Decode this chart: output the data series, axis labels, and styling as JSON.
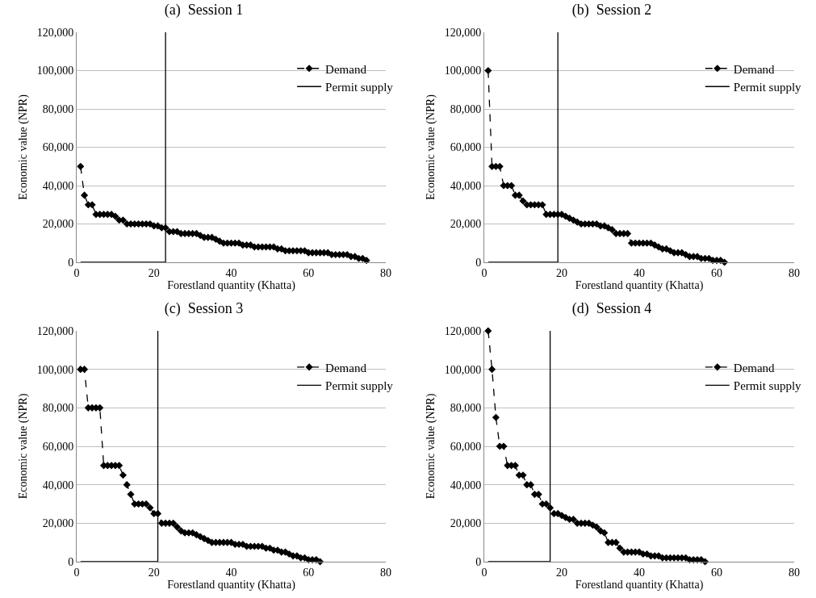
{
  "chart_data": [
    {
      "type": "line",
      "title": "(a)  Session 1",
      "xlabel": "Forestland quantity (Khatta)",
      "ylabel": "Economic value (NPR)",
      "xlim": [
        0,
        80
      ],
      "xticks": [
        0,
        20,
        40,
        60,
        80
      ],
      "ylim": [
        0,
        120000
      ],
      "yticks": [
        {
          "value": 0,
          "label": "0"
        },
        {
          "value": 20000,
          "label": "20,000"
        },
        {
          "value": 40000,
          "label": "40,000"
        },
        {
          "value": 60000,
          "label": "60,000"
        },
        {
          "value": 80000,
          "label": "80,000"
        },
        {
          "value": 100000,
          "label": "100,000"
        },
        {
          "value": 120000,
          "label": "120,000"
        }
      ],
      "grid": "y",
      "legend": "top right",
      "series": [
        {
          "name": "Demand",
          "color": "#000000",
          "marker": "diamond",
          "line_style": "dashed",
          "x": [
            1,
            2,
            3,
            4,
            5,
            6,
            7,
            8,
            9,
            10,
            11,
            12,
            13,
            14,
            15,
            16,
            17,
            18,
            19,
            20,
            21,
            22,
            23,
            24,
            25,
            26,
            27,
            28,
            29,
            30,
            31,
            32,
            33,
            34,
            35,
            36,
            37,
            38,
            39,
            40,
            41,
            42,
            43,
            44,
            45,
            46,
            47,
            48,
            49,
            50,
            51,
            52,
            53,
            54,
            55,
            56,
            57,
            58,
            59,
            60,
            61,
            62,
            63,
            64,
            65,
            66,
            67,
            68,
            69,
            70,
            71,
            72,
            73,
            74,
            75
          ],
          "values": [
            50000,
            35000,
            30000,
            30000,
            25000,
            25000,
            25000,
            25000,
            25000,
            24000,
            22000,
            22000,
            20000,
            20000,
            20000,
            20000,
            20000,
            20000,
            20000,
            19000,
            19000,
            18000,
            18000,
            16000,
            16000,
            16000,
            15000,
            15000,
            15000,
            15000,
            15000,
            14000,
            13000,
            13000,
            13000,
            12000,
            11000,
            10000,
            10000,
            10000,
            10000,
            10000,
            9000,
            9000,
            9000,
            8000,
            8000,
            8000,
            8000,
            8000,
            8000,
            7000,
            7000,
            6000,
            6000,
            6000,
            6000,
            6000,
            6000,
            5000,
            5000,
            5000,
            5000,
            5000,
            5000,
            4000,
            4000,
            4000,
            4000,
            4000,
            3000,
            3000,
            2000,
            2000,
            1000
          ]
        },
        {
          "name": "Permit supply",
          "color": "#000000",
          "marker": "none",
          "line_style": "solid",
          "x": [
            1,
            23,
            23
          ],
          "values": [
            0,
            0,
            120000
          ]
        }
      ]
    },
    {
      "type": "line",
      "title": "(b)  Session 2",
      "xlabel": "Forestland quantity (Khatta)",
      "ylabel": "Economic value (NPR)",
      "xlim": [
        0,
        80
      ],
      "xticks": [
        0,
        20,
        40,
        60,
        80
      ],
      "ylim": [
        0,
        120000
      ],
      "yticks": [
        {
          "value": 0,
          "label": "0"
        },
        {
          "value": 20000,
          "label": "20,000"
        },
        {
          "value": 40000,
          "label": "40,000"
        },
        {
          "value": 60000,
          "label": "60,000"
        },
        {
          "value": 80000,
          "label": "80,000"
        },
        {
          "value": 100000,
          "label": "100,000"
        },
        {
          "value": 120000,
          "label": "120,000"
        }
      ],
      "grid": "y",
      "legend": "top right",
      "series": [
        {
          "name": "Demand",
          "color": "#000000",
          "marker": "diamond",
          "line_style": "dashed",
          "x": [
            1,
            2,
            3,
            4,
            5,
            6,
            7,
            8,
            9,
            10,
            11,
            12,
            13,
            14,
            15,
            16,
            17,
            18,
            19,
            20,
            21,
            22,
            23,
            24,
            25,
            26,
            27,
            28,
            29,
            30,
            31,
            32,
            33,
            34,
            35,
            36,
            37,
            38,
            39,
            40,
            41,
            42,
            43,
            44,
            45,
            46,
            47,
            48,
            49,
            50,
            51,
            52,
            53,
            54,
            55,
            56,
            57,
            58,
            59,
            60,
            61,
            62
          ],
          "values": [
            100000,
            50000,
            50000,
            50000,
            40000,
            40000,
            40000,
            35000,
            35000,
            32000,
            30000,
            30000,
            30000,
            30000,
            30000,
            25000,
            25000,
            25000,
            25000,
            25000,
            24000,
            23000,
            22000,
            21000,
            20000,
            20000,
            20000,
            20000,
            20000,
            19000,
            19000,
            18000,
            17000,
            15000,
            15000,
            15000,
            15000,
            10000,
            10000,
            10000,
            10000,
            10000,
            10000,
            9000,
            8000,
            7000,
            7000,
            6000,
            5000,
            5000,
            5000,
            4000,
            3000,
            3000,
            3000,
            2000,
            2000,
            2000,
            1000,
            1000,
            1000,
            0
          ]
        },
        {
          "name": "Permit supply",
          "color": "#000000",
          "marker": "none",
          "line_style": "solid",
          "x": [
            1,
            19,
            19
          ],
          "values": [
            0,
            0,
            120000
          ]
        }
      ]
    },
    {
      "type": "line",
      "title": "(c)  Session 3",
      "xlabel": "Forestland quantity (Khatta)",
      "ylabel": "Economic value (NPR)",
      "xlim": [
        0,
        80
      ],
      "xticks": [
        0,
        20,
        40,
        60,
        80
      ],
      "ylim": [
        0,
        120000
      ],
      "yticks": [
        {
          "value": 0,
          "label": "0"
        },
        {
          "value": 20000,
          "label": "20,000"
        },
        {
          "value": 40000,
          "label": "40,000"
        },
        {
          "value": 60000,
          "label": "60,000"
        },
        {
          "value": 80000,
          "label": "80,000"
        },
        {
          "value": 100000,
          "label": "100,000"
        },
        {
          "value": 120000,
          "label": "120,000"
        }
      ],
      "grid": "y",
      "legend": "top right",
      "series": [
        {
          "name": "Demand",
          "color": "#000000",
          "marker": "diamond",
          "line_style": "dashed",
          "x": [
            1,
            2,
            3,
            4,
            5,
            6,
            7,
            8,
            9,
            10,
            11,
            12,
            13,
            14,
            15,
            16,
            17,
            18,
            19,
            20,
            21,
            22,
            23,
            24,
            25,
            26,
            27,
            28,
            29,
            30,
            31,
            32,
            33,
            34,
            35,
            36,
            37,
            38,
            39,
            40,
            41,
            42,
            43,
            44,
            45,
            46,
            47,
            48,
            49,
            50,
            51,
            52,
            53,
            54,
            55,
            56,
            57,
            58,
            59,
            60,
            61,
            62,
            63
          ],
          "values": [
            100000,
            100000,
            80000,
            80000,
            80000,
            80000,
            50000,
            50000,
            50000,
            50000,
            50000,
            45000,
            40000,
            35000,
            30000,
            30000,
            30000,
            30000,
            28000,
            25000,
            25000,
            20000,
            20000,
            20000,
            20000,
            18000,
            16000,
            15000,
            15000,
            15000,
            14000,
            13000,
            12000,
            11000,
            10000,
            10000,
            10000,
            10000,
            10000,
            10000,
            9000,
            9000,
            9000,
            8000,
            8000,
            8000,
            8000,
            8000,
            7000,
            7000,
            6000,
            6000,
            5000,
            5000,
            4000,
            3000,
            3000,
            2000,
            2000,
            1000,
            1000,
            1000,
            0
          ]
        },
        {
          "name": "Permit supply",
          "color": "#000000",
          "marker": "none",
          "line_style": "solid",
          "x": [
            1,
            21,
            21
          ],
          "values": [
            0,
            0,
            120000
          ]
        }
      ]
    },
    {
      "type": "line",
      "title": "(d)  Session 4",
      "xlabel": "Forestland quantity (Khatta)",
      "ylabel": "Economic value (NPR)",
      "xlim": [
        0,
        80
      ],
      "xticks": [
        0,
        20,
        40,
        60,
        80
      ],
      "ylim": [
        0,
        120000
      ],
      "yticks": [
        {
          "value": 0,
          "label": "0"
        },
        {
          "value": 20000,
          "label": "20,000"
        },
        {
          "value": 40000,
          "label": "40,000"
        },
        {
          "value": 60000,
          "label": "60,000"
        },
        {
          "value": 80000,
          "label": "80,000"
        },
        {
          "value": 100000,
          "label": "100,000"
        },
        {
          "value": 120000,
          "label": "120,000"
        }
      ],
      "grid": "y",
      "legend": "top right",
      "series": [
        {
          "name": "Demand",
          "color": "#000000",
          "marker": "diamond",
          "line_style": "dashed",
          "x": [
            1,
            2,
            3,
            4,
            5,
            6,
            7,
            8,
            9,
            10,
            11,
            12,
            13,
            14,
            15,
            16,
            17,
            18,
            19,
            20,
            21,
            22,
            23,
            24,
            25,
            26,
            27,
            28,
            29,
            30,
            31,
            32,
            33,
            34,
            35,
            36,
            37,
            38,
            39,
            40,
            41,
            42,
            43,
            44,
            45,
            46,
            47,
            48,
            49,
            50,
            51,
            52,
            53,
            54,
            55,
            56,
            57
          ],
          "values": [
            120000,
            100000,
            75000,
            60000,
            60000,
            50000,
            50000,
            50000,
            45000,
            45000,
            40000,
            40000,
            35000,
            35000,
            30000,
            30000,
            28000,
            25000,
            25000,
            24000,
            23000,
            22000,
            22000,
            20000,
            20000,
            20000,
            20000,
            19000,
            18000,
            16000,
            15000,
            10000,
            10000,
            10000,
            7000,
            5000,
            5000,
            5000,
            5000,
            5000,
            4000,
            4000,
            3000,
            3000,
            3000,
            2000,
            2000,
            2000,
            2000,
            2000,
            2000,
            2000,
            1000,
            1000,
            1000,
            1000,
            0
          ]
        },
        {
          "name": "Permit supply",
          "color": "#000000",
          "marker": "none",
          "line_style": "solid",
          "x": [
            1,
            17,
            17
          ],
          "values": [
            0,
            0,
            120000
          ]
        }
      ]
    }
  ]
}
